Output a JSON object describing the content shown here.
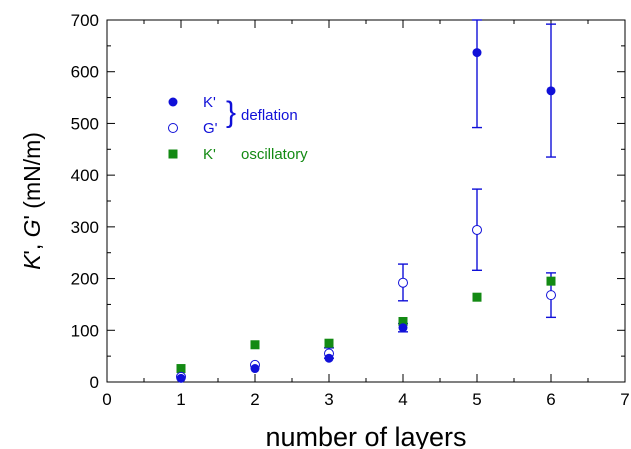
{
  "chart_data": {
    "type": "scatter",
    "xlabel": "number of layers",
    "ylabel": {
      "parts": [
        {
          "text": "K",
          "italic": true
        },
        {
          "text": "', ",
          "italic": false
        },
        {
          "text": "G",
          "italic": true
        },
        {
          "text": "' (mN/m)",
          "italic": false
        }
      ]
    },
    "xlim": [
      0,
      7
    ],
    "ylim": [
      0,
      700
    ],
    "xticks": [
      0,
      1,
      2,
      3,
      4,
      5,
      6,
      7
    ],
    "yticks": [
      0,
      100,
      200,
      300,
      400,
      500,
      600,
      700
    ],
    "grid": false,
    "legend_position": "top-left",
    "legend_bracket_label": "deflation",
    "series": [
      {
        "name": "K'",
        "group": "deflation",
        "marker": "filled-circle",
        "color": "#1010d8",
        "points": [
          {
            "x": 1,
            "y": 7,
            "err": null
          },
          {
            "x": 2,
            "y": 26,
            "err": null
          },
          {
            "x": 3,
            "y": 46,
            "err": null
          },
          {
            "x": 4,
            "y": 105,
            "err": [
              97,
              113
            ]
          },
          {
            "x": 5,
            "y": 637,
            "err": [
              492,
              700
            ]
          },
          {
            "x": 6,
            "y": 563,
            "err": [
              435,
              692
            ]
          }
        ]
      },
      {
        "name": "G'",
        "group": "deflation",
        "marker": "open-circle",
        "color": "#1010d8",
        "points": [
          {
            "x": 1,
            "y": 10,
            "err": null
          },
          {
            "x": 2,
            "y": 33,
            "err": null
          },
          {
            "x": 3,
            "y": 55,
            "err": [
              46,
              66
            ]
          },
          {
            "x": 4,
            "y": 192,
            "err": [
              157,
              228
            ]
          },
          {
            "x": 5,
            "y": 294,
            "err": [
              216,
              373
            ]
          },
          {
            "x": 6,
            "y": 168,
            "err": [
              125,
              211
            ]
          }
        ]
      },
      {
        "name": "K'",
        "label_suffix": "oscillatory",
        "marker": "filled-square",
        "color": "#138a13",
        "points": [
          {
            "x": 1,
            "y": 26,
            "err": null
          },
          {
            "x": 2,
            "y": 72,
            "err": null
          },
          {
            "x": 3,
            "y": 75,
            "err": null
          },
          {
            "x": 4,
            "y": 117,
            "err": null
          },
          {
            "x": 5,
            "y": 164,
            "err": null
          },
          {
            "x": 6,
            "y": 195,
            "err": null
          }
        ]
      }
    ]
  }
}
